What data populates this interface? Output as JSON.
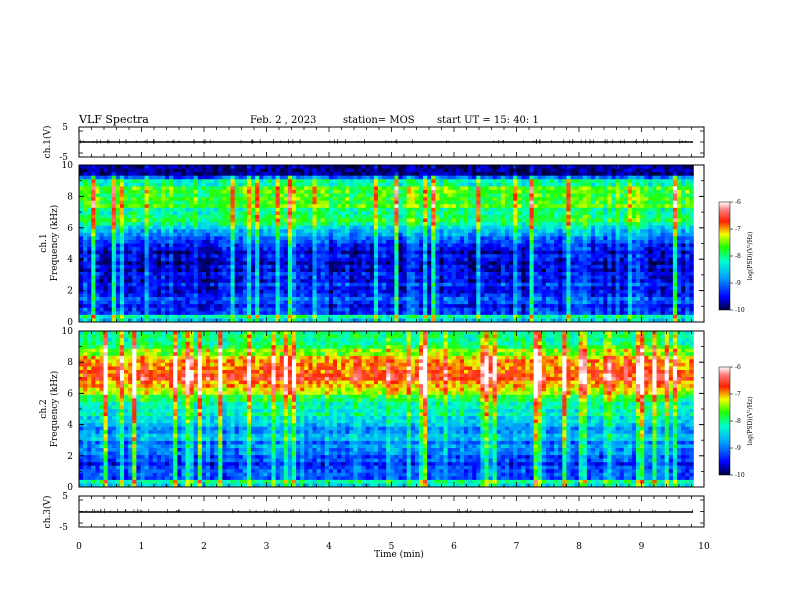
{
  "header": {
    "title": "VLF Spectra",
    "date": "Feb. 2 , 2023",
    "station": "station= MOS",
    "start_ut": "start UT = 15: 40: 1"
  },
  "colors": {
    "ink": "#000000",
    "spectrogram_low": "#000080",
    "spectrogram_mid": "#00ff00",
    "spectrogram_high": "#ff0000",
    "spectrogram_peak": "#ffffff"
  },
  "chart_data": [
    {
      "type": "line",
      "panel": "ch1-waveform",
      "ylabel": "ch.1(V)",
      "ylim": [
        -5,
        5
      ],
      "yticks": [
        "5",
        "-5"
      ],
      "x": [
        0,
        9.83
      ],
      "values": [
        0,
        0
      ],
      "description_visible": "flat trace near 0 V"
    },
    {
      "type": "heatmap",
      "panel": "ch1-spectrogram",
      "ylabel": "ch.1\nFrequency (kHz)",
      "ylabel_lines": [
        "ch.1",
        "Frequency (kHz)"
      ],
      "ylim": [
        0,
        10
      ],
      "yticks": [
        "0",
        "2",
        "4",
        "6",
        "8",
        "10"
      ],
      "xlim": [
        0,
        9.83
      ],
      "frequency_profile_log_psd": {
        "freq_khz": [
          0,
          0.3,
          0.6,
          1.0,
          1.5,
          2.0,
          2.5,
          3.0,
          4.0,
          5.0,
          5.6,
          6.0,
          7.0,
          8.0,
          8.6,
          9.0,
          9.3,
          9.6,
          10.0
        ],
        "level": [
          -8.6,
          -8.2,
          -9.2,
          -9.4,
          -9.2,
          -9.5,
          -9.3,
          -9.6,
          -9.5,
          -9.4,
          -8.7,
          -8.2,
          -7.9,
          -7.7,
          -7.8,
          -8.3,
          -9.6,
          -10,
          -10
        ]
      },
      "colorbar": {
        "label": "log(PSD)(V²/Hz)",
        "range": [
          -10,
          -6
        ],
        "ticks": [
          "-6",
          "-7",
          "-8",
          "-9",
          "-10"
        ]
      }
    },
    {
      "type": "heatmap",
      "panel": "ch2-spectrogram",
      "ylabel": "ch.2\nFrequency (kHz)",
      "ylabel_lines": [
        "ch.2",
        "Frequency (kHz)"
      ],
      "ylim": [
        0,
        10
      ],
      "yticks": [
        "0",
        "2",
        "4",
        "6",
        "8",
        "10"
      ],
      "xlim": [
        0,
        9.83
      ],
      "frequency_profile_log_psd": {
        "freq_khz": [
          0,
          0.3,
          0.6,
          1.0,
          1.5,
          2.0,
          3.0,
          4.0,
          5.0,
          6.0,
          6.5,
          7.0,
          7.5,
          8.0,
          8.5,
          9.0,
          9.5,
          10.0
        ],
        "level": [
          -8.4,
          -8.0,
          -9.2,
          -9.3,
          -9.4,
          -9.1,
          -8.8,
          -8.6,
          -8.2,
          -7.4,
          -7.0,
          -6.8,
          -6.8,
          -7.0,
          -7.3,
          -7.7,
          -8.0,
          -8.2
        ]
      },
      "colorbar": {
        "label": "log(PSD)(V²/Hz)",
        "range": [
          -10,
          -6
        ],
        "ticks": [
          "-6",
          "-7",
          "-8",
          "-9",
          "-10"
        ]
      }
    },
    {
      "type": "line",
      "panel": "ch3-waveform",
      "ylabel": "ch.3(V)",
      "ylim": [
        -5,
        5
      ],
      "yticks": [
        "5",
        "-5"
      ],
      "x": [
        0,
        9.83
      ],
      "values": [
        0,
        0
      ],
      "description_visible": "flat trace near 0 V"
    }
  ],
  "x_axis": {
    "label": "Time (min)",
    "range": [
      0,
      10
    ],
    "ticks": [
      "0",
      "1",
      "2",
      "3",
      "4",
      "5",
      "6",
      "7",
      "8",
      "9",
      "10"
    ]
  }
}
